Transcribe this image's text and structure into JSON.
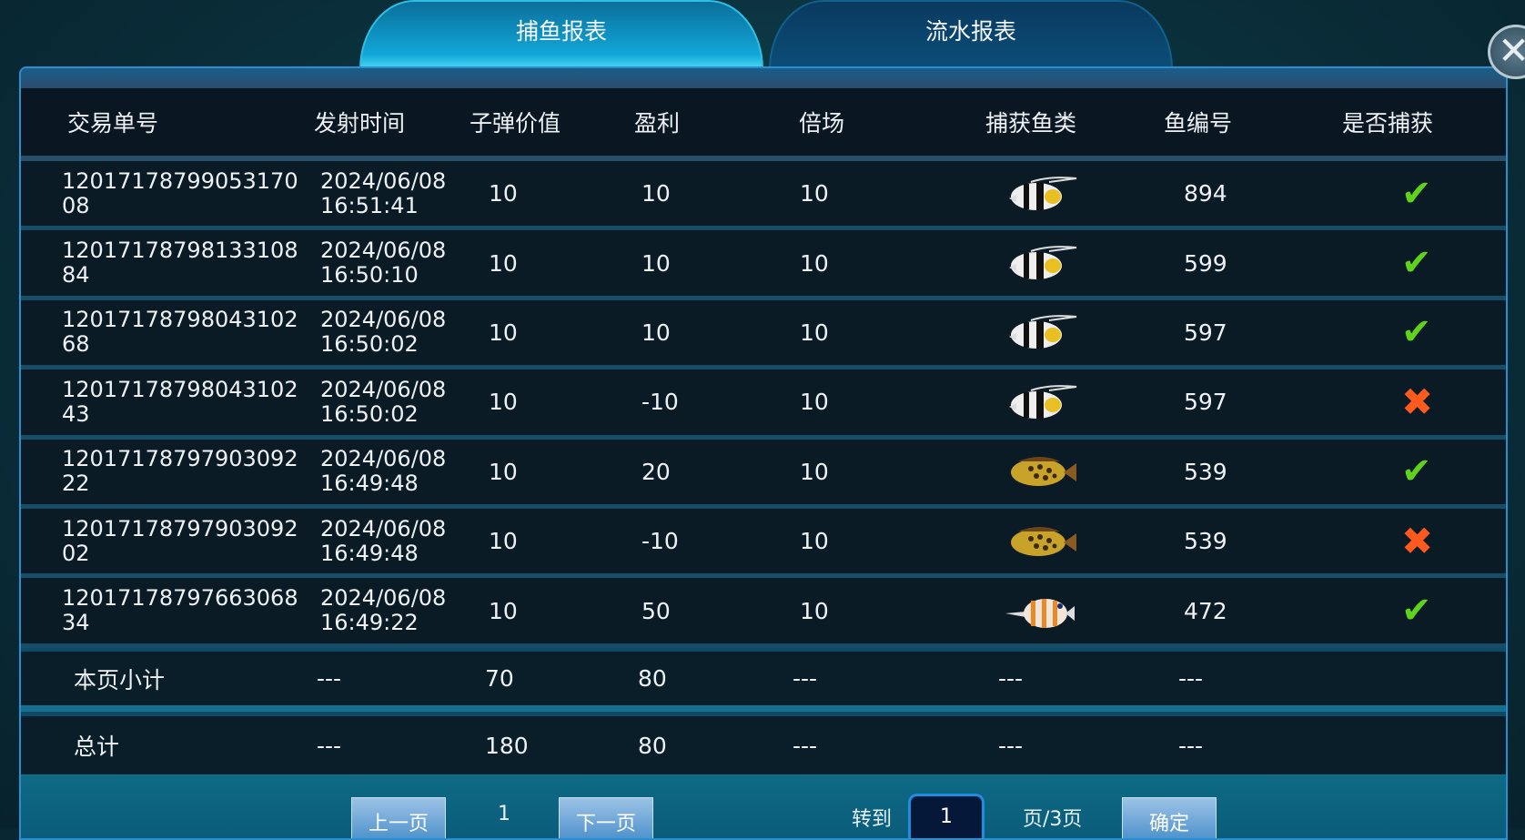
{
  "tabs": [
    {
      "label": "捕鱼报表",
      "active": true
    },
    {
      "label": "流水报表",
      "active": false
    }
  ],
  "columns": [
    "交易单号",
    "发射时间",
    "子弹价值",
    "盈利",
    "倍场",
    "捕获鱼类",
    "鱼编号",
    "是否捕获"
  ],
  "rows": [
    {
      "id1": "12017178799053170",
      "id2": "08",
      "date": "2024/06/08",
      "time": "16:51:41",
      "bullet": "10",
      "profit": "10",
      "multiplier": "10",
      "fish": "bannerfish",
      "fish_no": "894",
      "caught": true
    },
    {
      "id1": "12017178798133108",
      "id2": "84",
      "date": "2024/06/08",
      "time": "16:50:10",
      "bullet": "10",
      "profit": "10",
      "multiplier": "10",
      "fish": "bannerfish",
      "fish_no": "599",
      "caught": true
    },
    {
      "id1": "12017178798043102",
      "id2": "68",
      "date": "2024/06/08",
      "time": "16:50:02",
      "bullet": "10",
      "profit": "10",
      "multiplier": "10",
      "fish": "bannerfish",
      "fish_no": "597",
      "caught": true
    },
    {
      "id1": "12017178798043102",
      "id2": "43",
      "date": "2024/06/08",
      "time": "16:50:02",
      "bullet": "10",
      "profit": "-10",
      "multiplier": "10",
      "fish": "bannerfish",
      "fish_no": "597",
      "caught": false
    },
    {
      "id1": "12017178797903092",
      "id2": "22",
      "date": "2024/06/08",
      "time": "16:49:48",
      "bullet": "10",
      "profit": "20",
      "multiplier": "10",
      "fish": "spotted-grouper",
      "fish_no": "539",
      "caught": true
    },
    {
      "id1": "12017178797903092",
      "id2": "02",
      "date": "2024/06/08",
      "time": "16:49:48",
      "bullet": "10",
      "profit": "-10",
      "multiplier": "10",
      "fish": "spotted-grouper",
      "fish_no": "539",
      "caught": false
    },
    {
      "id1": "12017178797663068",
      "id2": "34",
      "date": "2024/06/08",
      "time": "16:49:22",
      "bullet": "10",
      "profit": "50",
      "multiplier": "10",
      "fish": "butterflyfish",
      "fish_no": "472",
      "caught": true
    }
  ],
  "subtotal": {
    "label": "本页小计",
    "time": "---",
    "bullet": "70",
    "profit": "80",
    "multiplier": "---",
    "fish": "---",
    "fish_no": "---"
  },
  "total": {
    "label": "总计",
    "time": "---",
    "bullet": "180",
    "profit": "80",
    "multiplier": "---",
    "fish": "---",
    "fish_no": "---"
  },
  "pagination": {
    "prev": "上一页",
    "current": "1",
    "next": "下一页",
    "goto": "转到",
    "goto_value": "1",
    "pages": "页/3页",
    "confirm": "确定"
  },
  "icons": {
    "close": "close-icon",
    "caught": "check-icon",
    "missed": "cross-icon"
  },
  "colors": {
    "check": "#5fd21b",
    "cross": "#ff5a1e",
    "active_tab": "#11a6d8"
  }
}
